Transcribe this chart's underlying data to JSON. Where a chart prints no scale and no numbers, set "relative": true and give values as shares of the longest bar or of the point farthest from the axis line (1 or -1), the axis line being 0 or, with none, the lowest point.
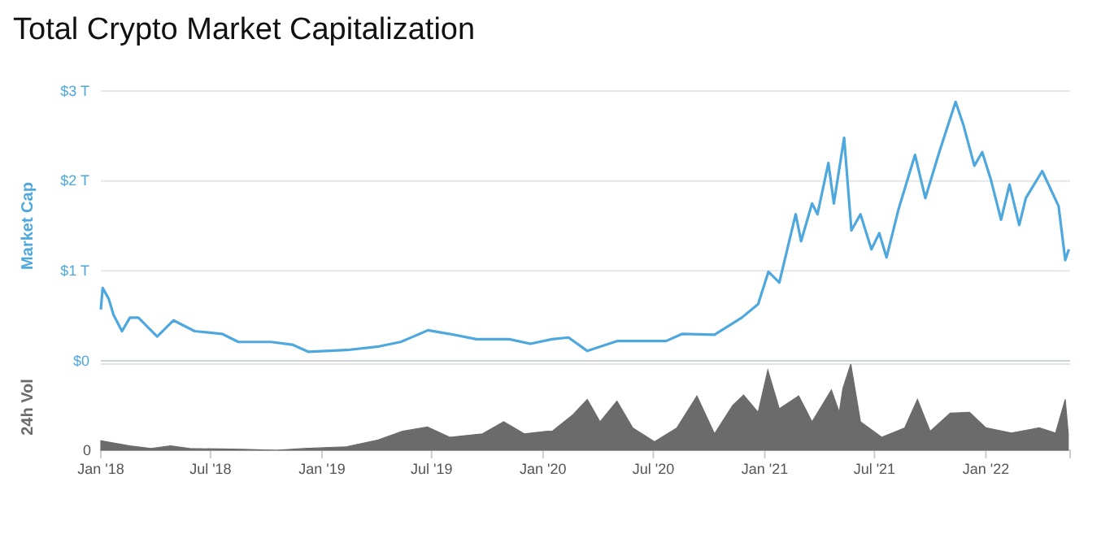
{
  "chart_data": [
    {
      "type": "line",
      "title": "Total Crypto Market Capitalization",
      "ylabel": "Market Cap",
      "xlim": [
        "2018-01-01",
        "2022-05-20"
      ],
      "ylim": [
        0,
        3
      ],
      "yticks": [
        {
          "value": 0,
          "label": "$0"
        },
        {
          "value": 1,
          "label": "$1 T"
        },
        {
          "value": 2,
          "label": "$2 T"
        },
        {
          "value": 3,
          "label": "$3 T"
        }
      ],
      "grid": "y",
      "tick_labels": "y",
      "series": [
        {
          "color": "#4fa8dd",
          "x": [
            "2018-01-01",
            "2018-01-04",
            "2018-01-14",
            "2018-01-22",
            "2018-02-05",
            "2018-02-18",
            "2018-03-04",
            "2018-04-04",
            "2018-05-01",
            "2018-06-05",
            "2018-07-20",
            "2018-08-16",
            "2018-10-09",
            "2018-11-13",
            "2018-12-10",
            "2019-02-11",
            "2019-04-05",
            "2019-05-11",
            "2019-06-25",
            "2019-07-30",
            "2019-09-13",
            "2019-11-06",
            "2019-12-11",
            "2020-01-16",
            "2020-02-12",
            "2020-03-14",
            "2020-05-02",
            "2020-07-22",
            "2020-08-18",
            "2020-10-10",
            "2020-11-24",
            "2020-12-21",
            "2021-01-07",
            "2021-01-25",
            "2021-02-21",
            "2021-03-02",
            "2021-03-20",
            "2021-03-29",
            "2021-04-16",
            "2021-04-25",
            "2021-05-12",
            "2021-05-24",
            "2021-06-08",
            "2021-06-26",
            "2021-07-09",
            "2021-07-21",
            "2021-08-10",
            "2021-09-06",
            "2021-09-23",
            "2021-10-16",
            "2021-11-12",
            "2021-11-25",
            "2021-12-13",
            "2021-12-26",
            "2022-01-09",
            "2022-01-26",
            "2022-02-09",
            "2022-02-25",
            "2022-03-08",
            "2022-04-04",
            "2022-05-01",
            "2022-05-12",
            "2022-05-18"
          ],
          "values": [
            0.57,
            0.81,
            0.69,
            0.51,
            0.33,
            0.48,
            0.48,
            0.27,
            0.45,
            0.33,
            0.3,
            0.21,
            0.21,
            0.18,
            0.1,
            0.12,
            0.16,
            0.21,
            0.34,
            0.3,
            0.24,
            0.24,
            0.19,
            0.24,
            0.26,
            0.11,
            0.22,
            0.22,
            0.3,
            0.29,
            0.48,
            0.63,
            0.99,
            0.87,
            1.63,
            1.33,
            1.75,
            1.63,
            2.2,
            1.75,
            2.48,
            1.45,
            1.63,
            1.24,
            1.42,
            1.15,
            1.69,
            2.29,
            1.81,
            2.32,
            2.88,
            2.62,
            2.17,
            2.32,
            2.02,
            1.57,
            1.96,
            1.51,
            1.81,
            2.11,
            1.72,
            1.12,
            1.24
          ]
        }
      ]
    },
    {
      "type": "area",
      "ylabel": "24h Vol",
      "relative": true,
      "xlim": [
        "2018-01-01",
        "2022-05-20"
      ],
      "xticks": [
        {
          "value": "2018-01-01",
          "label": "Jan '18"
        },
        {
          "value": "2018-07-01",
          "label": "Jul '18"
        },
        {
          "value": "2019-01-01",
          "label": "Jan '19"
        },
        {
          "value": "2019-07-01",
          "label": "Jul '19"
        },
        {
          "value": "2020-01-01",
          "label": "Jan '20"
        },
        {
          "value": "2020-07-01",
          "label": "Jul '20"
        },
        {
          "value": "2021-01-01",
          "label": "Jan '21"
        },
        {
          "value": "2021-07-01",
          "label": "Jul '21"
        },
        {
          "value": "2022-01-01",
          "label": "Jan '22"
        }
      ],
      "tick_labels": "x",
      "annotations": [
        "0"
      ],
      "series": [
        {
          "color": "#6b6b6b",
          "x": [
            "2018-01-01",
            "2018-02-18",
            "2018-03-25",
            "2018-04-26",
            "2018-05-28",
            "2018-08-25",
            "2018-10-17",
            "2018-12-02",
            "2019-02-10",
            "2019-04-04",
            "2019-05-14",
            "2019-06-24",
            "2019-07-31",
            "2019-09-23",
            "2019-10-28",
            "2019-12-01",
            "2020-01-08",
            "2020-01-16",
            "2020-02-19",
            "2020-03-14",
            "2020-04-04",
            "2020-05-02",
            "2020-05-28",
            "2020-07-03",
            "2020-08-09",
            "2020-09-11",
            "2020-10-10",
            "2020-11-09",
            "2020-11-27",
            "2020-12-21",
            "2021-01-06",
            "2021-01-25",
            "2021-02-26",
            "2021-03-20",
            "2021-04-21",
            "2021-05-04",
            "2021-05-10",
            "2021-05-23",
            "2021-06-08",
            "2021-07-13",
            "2021-08-20",
            "2021-09-10",
            "2021-10-01",
            "2021-11-03",
            "2021-12-05",
            "2022-01-01",
            "2022-02-12",
            "2022-03-30",
            "2022-04-26",
            "2022-05-12",
            "2022-05-17"
          ],
          "values": [
            0.11,
            0.05,
            0.02,
            0.05,
            0.02,
            0.01,
            0,
            0.02,
            0.04,
            0.12,
            0.22,
            0.27,
            0.15,
            0.19,
            0.33,
            0.19,
            0.22,
            0.22,
            0.41,
            0.59,
            0.33,
            0.57,
            0.26,
            0.1,
            0.26,
            0.63,
            0.19,
            0.52,
            0.64,
            0.44,
            0.93,
            0.48,
            0.63,
            0.33,
            0.7,
            0.44,
            0.72,
            1,
            0.33,
            0.15,
            0.26,
            0.59,
            0.22,
            0.43,
            0.44,
            0.26,
            0.2,
            0.26,
            0.2,
            0.59,
            0.19
          ]
        }
      ]
    }
  ]
}
